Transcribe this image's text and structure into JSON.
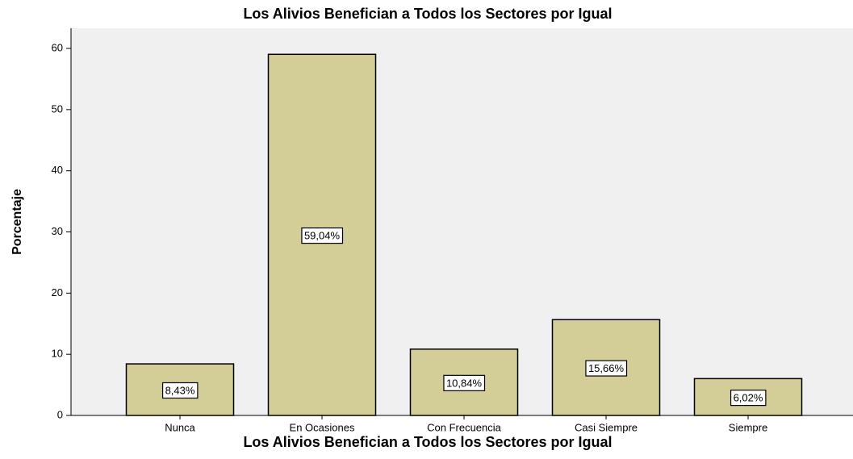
{
  "chart_data": {
    "type": "bar",
    "title": "Los Alivios Benefician a Todos los Sectores por Igual",
    "x_label": "Los Alivios Benefician a Todos los Sectores por Igual",
    "y_label": "Porcentaje",
    "categories": [
      "Nunca",
      "En Ocasiones",
      "Con Frecuencia",
      "Casi Siempre",
      "Siempre"
    ],
    "values": [
      8.43,
      59.04,
      10.84,
      15.66,
      6.02
    ],
    "value_labels": [
      "8,43%",
      "59,04%",
      "10,84%",
      "15,66%",
      "6,02%"
    ],
    "color": "#d3ce97",
    "ylim": [
      0,
      63.3
    ],
    "yticks": [
      0,
      10,
      20,
      30,
      40,
      50,
      60
    ],
    "grid": false
  }
}
